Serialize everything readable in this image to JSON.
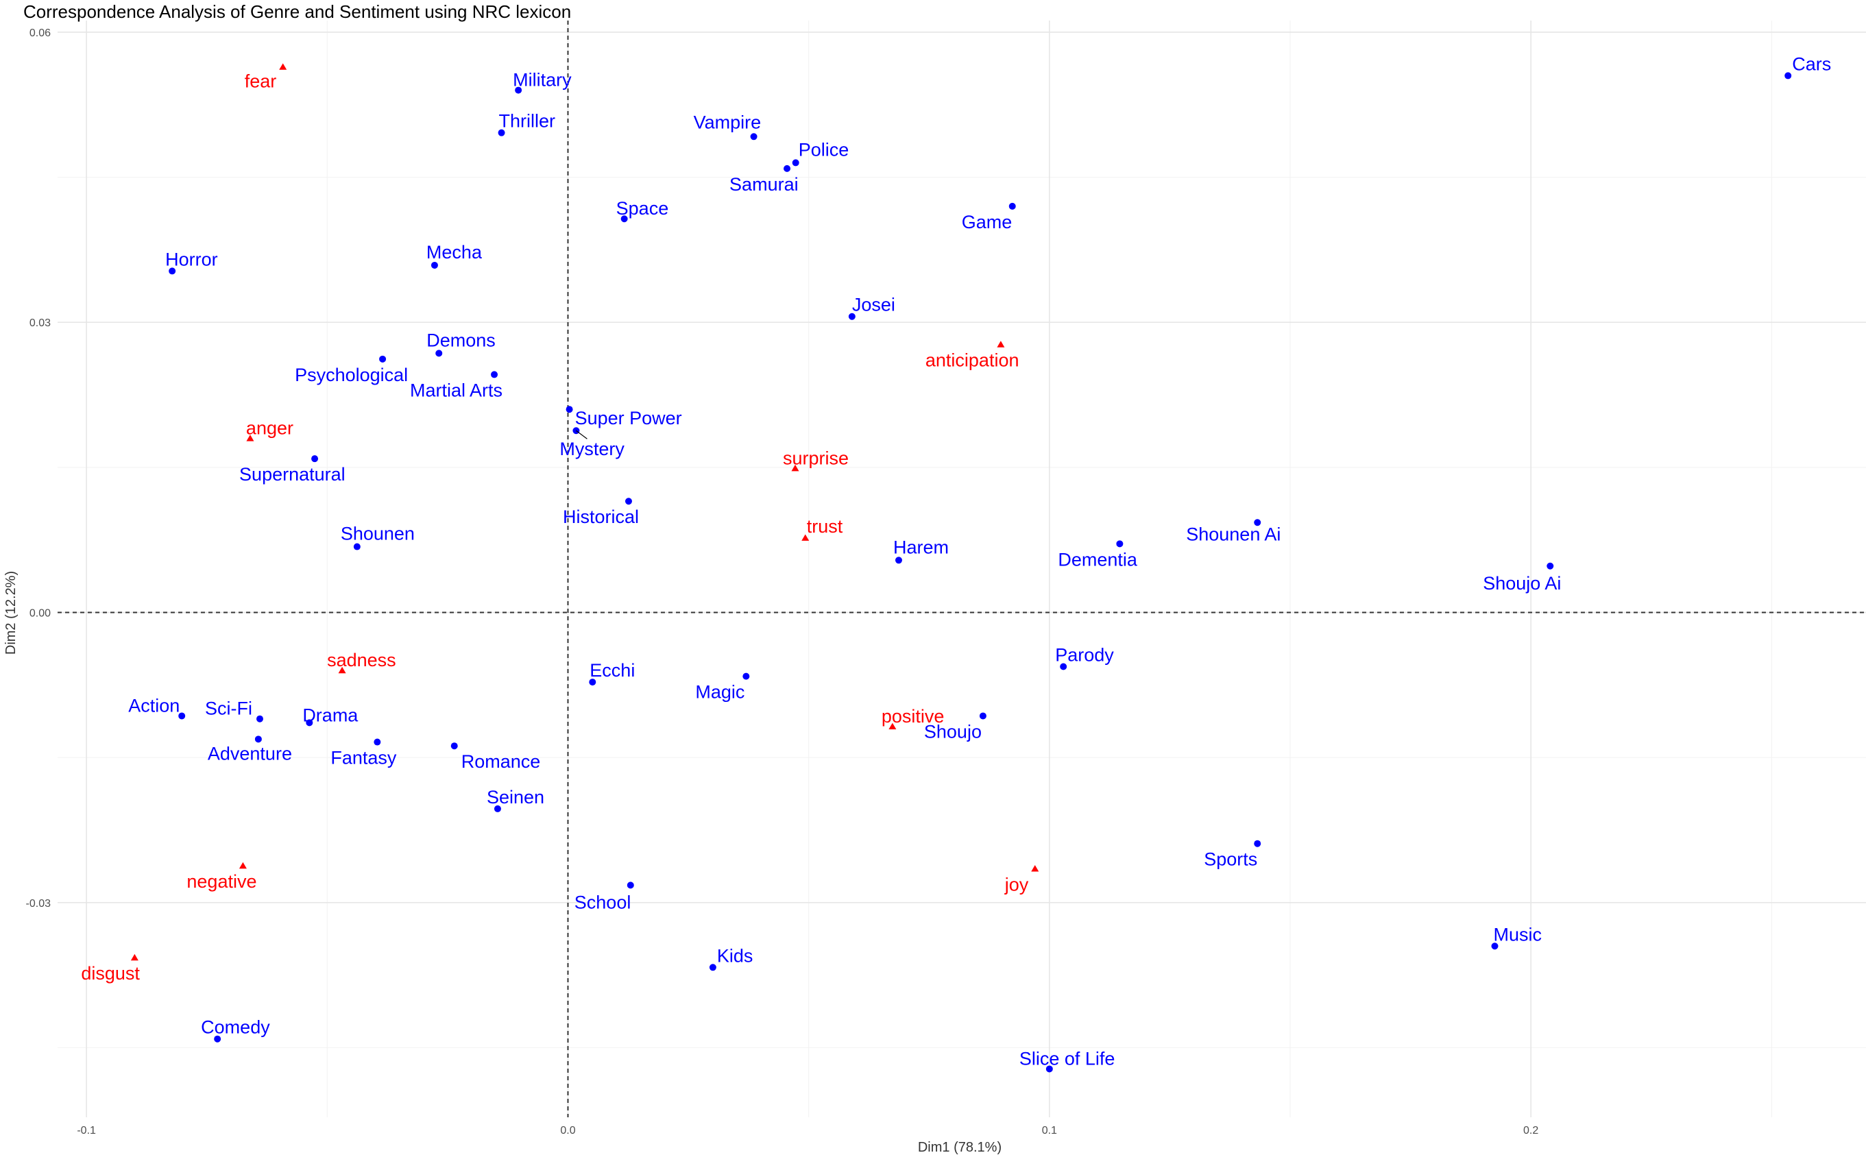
{
  "chart_data": {
    "type": "scatter",
    "title": "Correspondence Analysis of Genre and Sentiment using NRC lexicon",
    "xlabel": "Dim1 (78.1%)",
    "ylabel": "Dim2 (12.2%)",
    "xlim": [
      -0.106,
      0.2696
    ],
    "ylim": [
      -0.0522,
      0.0612
    ],
    "x_ticks": [
      -0.1,
      0.0,
      0.1,
      0.2
    ],
    "x_tick_labels": [
      "-0.1",
      "0.0",
      "0.1",
      "0.2"
    ],
    "y_ticks": [
      -0.03,
      0.0,
      0.03,
      0.06
    ],
    "y_tick_labels": [
      "-0.03",
      "0.00",
      "0.03",
      "0.06"
    ],
    "grid": true,
    "reference_lines": {
      "x": 0,
      "y": 0,
      "style": "dashed"
    },
    "colors": {
      "genre": "#0000ff",
      "sentiment": "#ff0000"
    },
    "genres": [
      {
        "label": "Cars",
        "x": 0.2534,
        "y": 0.0555
      },
      {
        "label": "Military",
        "x": -0.0103,
        "y": 0.054
      },
      {
        "label": "Thriller",
        "x": -0.0138,
        "y": 0.0496
      },
      {
        "label": "Vampire",
        "x": 0.0386,
        "y": 0.0492
      },
      {
        "label": "Police",
        "x": 0.0473,
        "y": 0.0465
      },
      {
        "label": "Samurai",
        "x": 0.0455,
        "y": 0.0459
      },
      {
        "label": "Space",
        "x": 0.0117,
        "y": 0.0407
      },
      {
        "label": "Game",
        "x": 0.0923,
        "y": 0.042
      },
      {
        "label": "Horror",
        "x": -0.0822,
        "y": 0.0353
      },
      {
        "label": "Mecha",
        "x": -0.0277,
        "y": 0.0359
      },
      {
        "label": "Josei",
        "x": 0.059,
        "y": 0.0306
      },
      {
        "label": "Demons",
        "x": -0.0268,
        "y": 0.0268
      },
      {
        "label": "Psychological",
        "x": -0.0385,
        "y": 0.0262
      },
      {
        "label": "Martial Arts",
        "x": -0.0153,
        "y": 0.0246
      },
      {
        "label": "Super Power",
        "x": 0.0003,
        "y": 0.021
      },
      {
        "label": "Mystery",
        "x": 0.0017,
        "y": 0.0188
      },
      {
        "label": "Supernatural",
        "x": -0.0526,
        "y": 0.0159
      },
      {
        "label": "Historical",
        "x": 0.0126,
        "y": 0.0115
      },
      {
        "label": "Shounen",
        "x": -0.0438,
        "y": 0.0068
      },
      {
        "label": "Harem",
        "x": 0.0687,
        "y": 0.0054
      },
      {
        "label": "Dementia",
        "x": 0.1146,
        "y": 0.0071
      },
      {
        "label": "Shounen Ai",
        "x": 0.1432,
        "y": 0.0093
      },
      {
        "label": "Shoujo Ai",
        "x": 0.204,
        "y": 0.0048
      },
      {
        "label": "Parody",
        "x": 0.1029,
        "y": -0.0056
      },
      {
        "label": "Ecchi",
        "x": 0.0051,
        "y": -0.0072
      },
      {
        "label": "Magic",
        "x": 0.037,
        "y": -0.0066
      },
      {
        "label": "Action",
        "x": -0.0802,
        "y": -0.0107
      },
      {
        "label": "Sci-Fi",
        "x": -0.064,
        "y": -0.011
      },
      {
        "label": "Drama",
        "x": -0.0537,
        "y": -0.0114
      },
      {
        "label": "Adventure",
        "x": -0.0643,
        "y": -0.0131
      },
      {
        "label": "Fantasy",
        "x": -0.0396,
        "y": -0.0134
      },
      {
        "label": "Romance",
        "x": -0.0236,
        "y": -0.0138
      },
      {
        "label": "Shoujo",
        "x": 0.0862,
        "y": -0.0107
      },
      {
        "label": "Seinen",
        "x": -0.0146,
        "y": -0.0203
      },
      {
        "label": "Sports",
        "x": 0.1432,
        "y": -0.0239
      },
      {
        "label": "School",
        "x": 0.013,
        "y": -0.0282
      },
      {
        "label": "Music",
        "x": 0.1925,
        "y": -0.0345
      },
      {
        "label": "Kids",
        "x": 0.0301,
        "y": -0.0367
      },
      {
        "label": "Comedy",
        "x": -0.0728,
        "y": -0.0441
      },
      {
        "label": "Slice of Life",
        "x": 0.1,
        "y": -0.0472
      }
    ],
    "sentiments": [
      {
        "label": "fear",
        "x": -0.0592,
        "y": 0.0564
      },
      {
        "label": "anticipation",
        "x": 0.0899,
        "y": 0.0277
      },
      {
        "label": "anger",
        "x": -0.066,
        "y": 0.018
      },
      {
        "label": "surprise",
        "x": 0.0472,
        "y": 0.0149
      },
      {
        "label": "trust",
        "x": 0.0493,
        "y": 0.0077
      },
      {
        "label": "sadness",
        "x": -0.0469,
        "y": -0.006
      },
      {
        "label": "positive",
        "x": 0.0674,
        "y": -0.0118
      },
      {
        "label": "negative",
        "x": -0.0675,
        "y": -0.0262
      },
      {
        "label": "joy",
        "x": 0.097,
        "y": -0.0265
      },
      {
        "label": "disgust",
        "x": -0.09,
        "y": -0.0357
      }
    ]
  }
}
